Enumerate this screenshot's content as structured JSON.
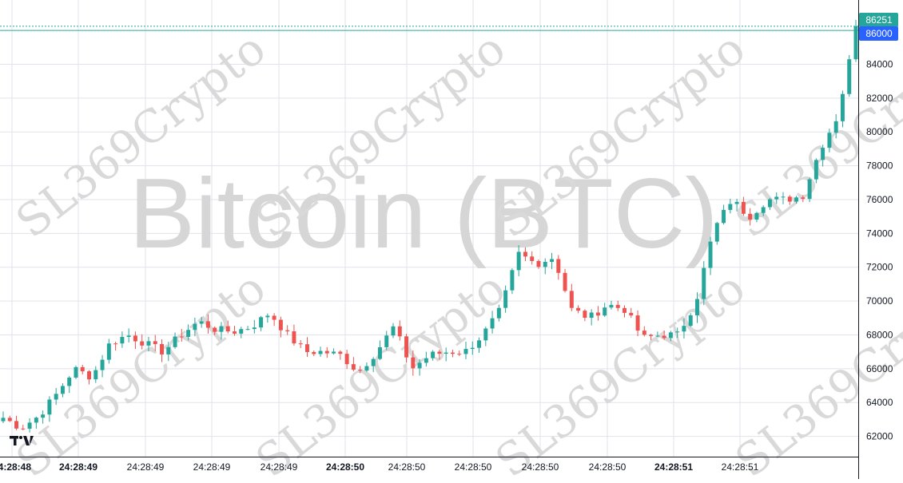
{
  "watermark": {
    "title": "Bitcoin (BTC)",
    "brand": "SL369Crypto"
  },
  "logo": {
    "name": "tradingview-logo-icon"
  },
  "colors": {
    "up": "#26a69a",
    "down": "#ef5350",
    "grid": "#e0e3eb",
    "last_price_tag": "#26a69a",
    "crosshair_tag": "#2962ff"
  },
  "price_tags": {
    "last_price": "86251",
    "crosshair_price": "86000"
  },
  "chart_data": {
    "type": "candlestick",
    "title": "",
    "xlabel": "",
    "ylabel": "",
    "ylim": [
      60800,
      87800
    ],
    "grid": true,
    "legend": "none",
    "y_ticks": [
      62000,
      64000,
      66000,
      68000,
      70000,
      72000,
      74000,
      76000,
      78000,
      80000,
      82000,
      84000
    ],
    "x_ticks": [
      {
        "label": "24:28:48",
        "bold": true
      },
      {
        "label": "24:28:49",
        "bold": true
      },
      {
        "label": "24:28:49",
        "bold": false
      },
      {
        "label": "24:28:49",
        "bold": false
      },
      {
        "label": "24:28:49",
        "bold": false
      },
      {
        "label": "24:28:50",
        "bold": true
      },
      {
        "label": "24:28:50",
        "bold": false
      },
      {
        "label": "24:28:50",
        "bold": false
      },
      {
        "label": "24:28:50",
        "bold": false
      },
      {
        "label": "24:28:50",
        "bold": false
      },
      {
        "label": "24:28:51",
        "bold": true
      },
      {
        "label": "24:28:51",
        "bold": false
      }
    ],
    "close_anchors": [
      63100,
      62500,
      63200,
      64500,
      66000,
      65500,
      67500,
      68000,
      67500,
      67000,
      68000,
      68800,
      68300,
      68200,
      68500,
      69300,
      68000,
      67000,
      67000,
      66800,
      65800,
      67000,
      68500,
      66000,
      66800,
      67000,
      67000,
      68000,
      69500,
      72800,
      72200,
      72600,
      69500,
      69000,
      69800,
      69500,
      67800,
      68000,
      68000,
      70000,
      74200,
      76000,
      75000,
      76000,
      76000,
      76200,
      79000,
      81000,
      86251
    ]
  }
}
